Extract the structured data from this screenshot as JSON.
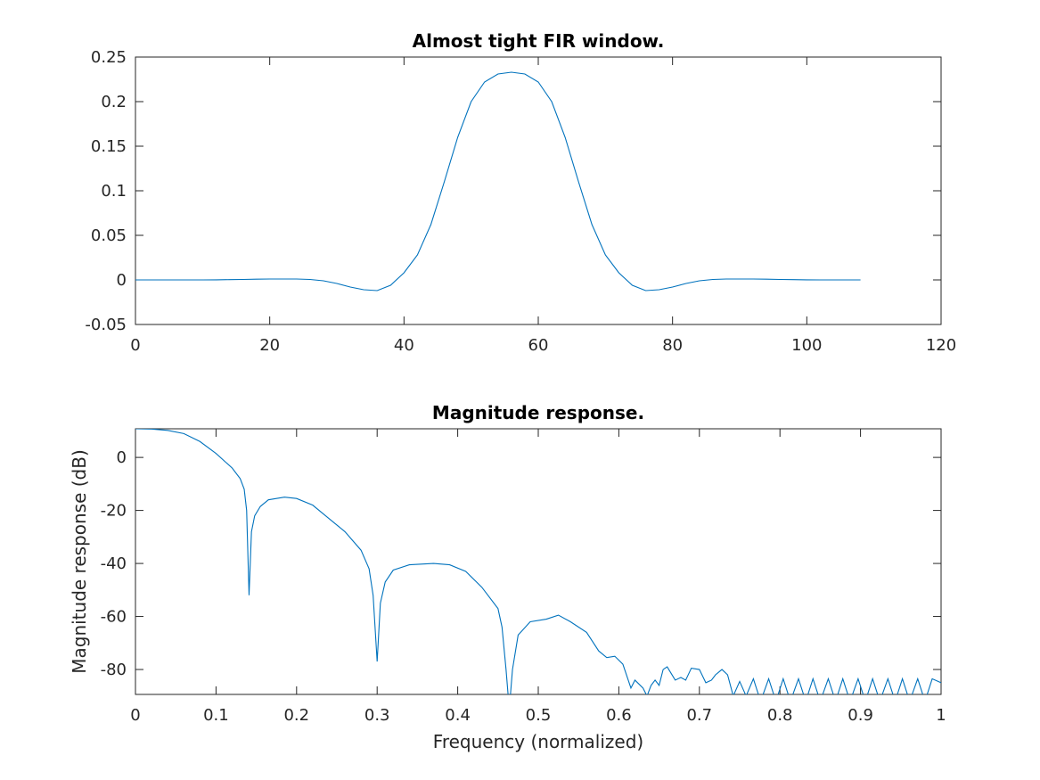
{
  "chart_data": [
    {
      "type": "line",
      "title": "Almost tight FIR window.",
      "x": [
        0,
        2,
        4,
        6,
        8,
        10,
        12,
        14,
        16,
        18,
        20,
        22,
        24,
        26,
        28,
        30,
        32,
        34,
        36,
        38,
        40,
        42,
        44,
        46,
        48,
        50,
        52,
        54,
        56,
        58,
        60,
        62,
        64,
        66,
        68,
        70,
        72,
        74,
        76,
        78,
        80,
        82,
        84,
        86,
        88,
        90,
        92,
        94,
        96,
        98,
        100,
        102,
        104,
        106,
        108
      ],
      "series": [
        {
          "color": "#0072bd",
          "values": [
            0,
            0,
            0,
            0,
            0,
            0,
            0.0001,
            0.0003,
            0.0005,
            0.0008,
            0.001,
            0.001,
            0.001,
            0.0005,
            -0.001,
            -0.004,
            -0.008,
            -0.011,
            -0.012,
            -0.006,
            0.008,
            0.028,
            0.062,
            0.11,
            0.16,
            0.2,
            0.222,
            0.231,
            0.233,
            0.231,
            0.222,
            0.2,
            0.16,
            0.11,
            0.062,
            0.028,
            0.008,
            -0.006,
            -0.012,
            -0.011,
            -0.008,
            -0.004,
            -0.001,
            0.0005,
            0.001,
            0.001,
            0.001,
            0.0008,
            0.0005,
            0.0003,
            0.0001,
            0,
            0,
            0,
            0
          ]
        }
      ],
      "xlim": [
        0,
        120
      ],
      "xticks": [
        0,
        20,
        40,
        60,
        80,
        100,
        120
      ],
      "ylim": [
        -0.05,
        0.25
      ],
      "yticks": [
        -0.05,
        0,
        0.05,
        0.1,
        0.15,
        0.2,
        0.25
      ]
    },
    {
      "type": "line",
      "title": "Magnitude response.",
      "xlabel": "Frequency (normalized)",
      "ylabel": "Magnitude response (dB)",
      "x": [
        0,
        0.02,
        0.04,
        0.06,
        0.08,
        0.1,
        0.12,
        0.13,
        0.135,
        0.138,
        0.141,
        0.144,
        0.148,
        0.155,
        0.165,
        0.185,
        0.2,
        0.22,
        0.24,
        0.26,
        0.28,
        0.29,
        0.295,
        0.3,
        0.304,
        0.31,
        0.32,
        0.34,
        0.37,
        0.39,
        0.41,
        0.43,
        0.45,
        0.455,
        0.46,
        0.464,
        0.468,
        0.475,
        0.49,
        0.51,
        0.525,
        0.54,
        0.56,
        0.575,
        0.585,
        0.595,
        0.605,
        0.615,
        0.62,
        0.63,
        0.635,
        0.64,
        0.645,
        0.65,
        0.655,
        0.66,
        0.67,
        0.677,
        0.683,
        0.69,
        0.7,
        0.708,
        0.715,
        0.72,
        0.728,
        0.735,
        0.742,
        0.75,
        0.758,
        0.767,
        0.776,
        0.786,
        0.795,
        0.804,
        0.813,
        0.823,
        0.832,
        0.841,
        0.85,
        0.86,
        0.869,
        0.878,
        0.887,
        0.897,
        0.906,
        0.915,
        0.924,
        0.934,
        0.943,
        0.952,
        0.961,
        0.971,
        0.98,
        0.989,
        1
      ],
      "series": [
        {
          "color": "#0072bd",
          "values": [
            10.8,
            10.7,
            10.2,
            9,
            6,
            1.5,
            -4,
            -8,
            -12,
            -20,
            -52,
            -28,
            -22,
            -18.5,
            -16,
            -15,
            -15.5,
            -18,
            -23,
            -28,
            -35,
            -42,
            -52,
            -77,
            -55,
            -47,
            -42.5,
            -40.5,
            -40,
            -40.5,
            -43,
            -49,
            -57,
            -64,
            -80,
            -95,
            -80,
            -67,
            -62,
            -61,
            -59.5,
            -62,
            -66,
            -73,
            -75.5,
            -75,
            -78,
            -87,
            -84,
            -87,
            -90,
            -86,
            -84,
            -86,
            -80,
            -79,
            -84,
            -83,
            -84,
            -79.5,
            -80,
            -85,
            -84,
            -82,
            -80,
            -82,
            -90,
            -84.5,
            -90,
            -83.5,
            -92,
            -83.5,
            -92,
            -83.5,
            -92,
            -83.5,
            -92,
            -83.5,
            -92,
            -83.5,
            -92,
            -83.5,
            -92,
            -83.5,
            -92,
            -83.5,
            -92,
            -83.5,
            -92,
            -83.5,
            -92,
            -83.5,
            -92,
            -83.5,
            -85
          ]
        }
      ],
      "xlim": [
        0,
        1
      ],
      "xticks": [
        0,
        0.1,
        0.2,
        0.3,
        0.4,
        0.5,
        0.6,
        0.7,
        0.8,
        0.9,
        1
      ],
      "ylim": [
        -89.4,
        10.8
      ],
      "yticks": [
        -80,
        -60,
        -40,
        -20,
        0
      ]
    }
  ]
}
